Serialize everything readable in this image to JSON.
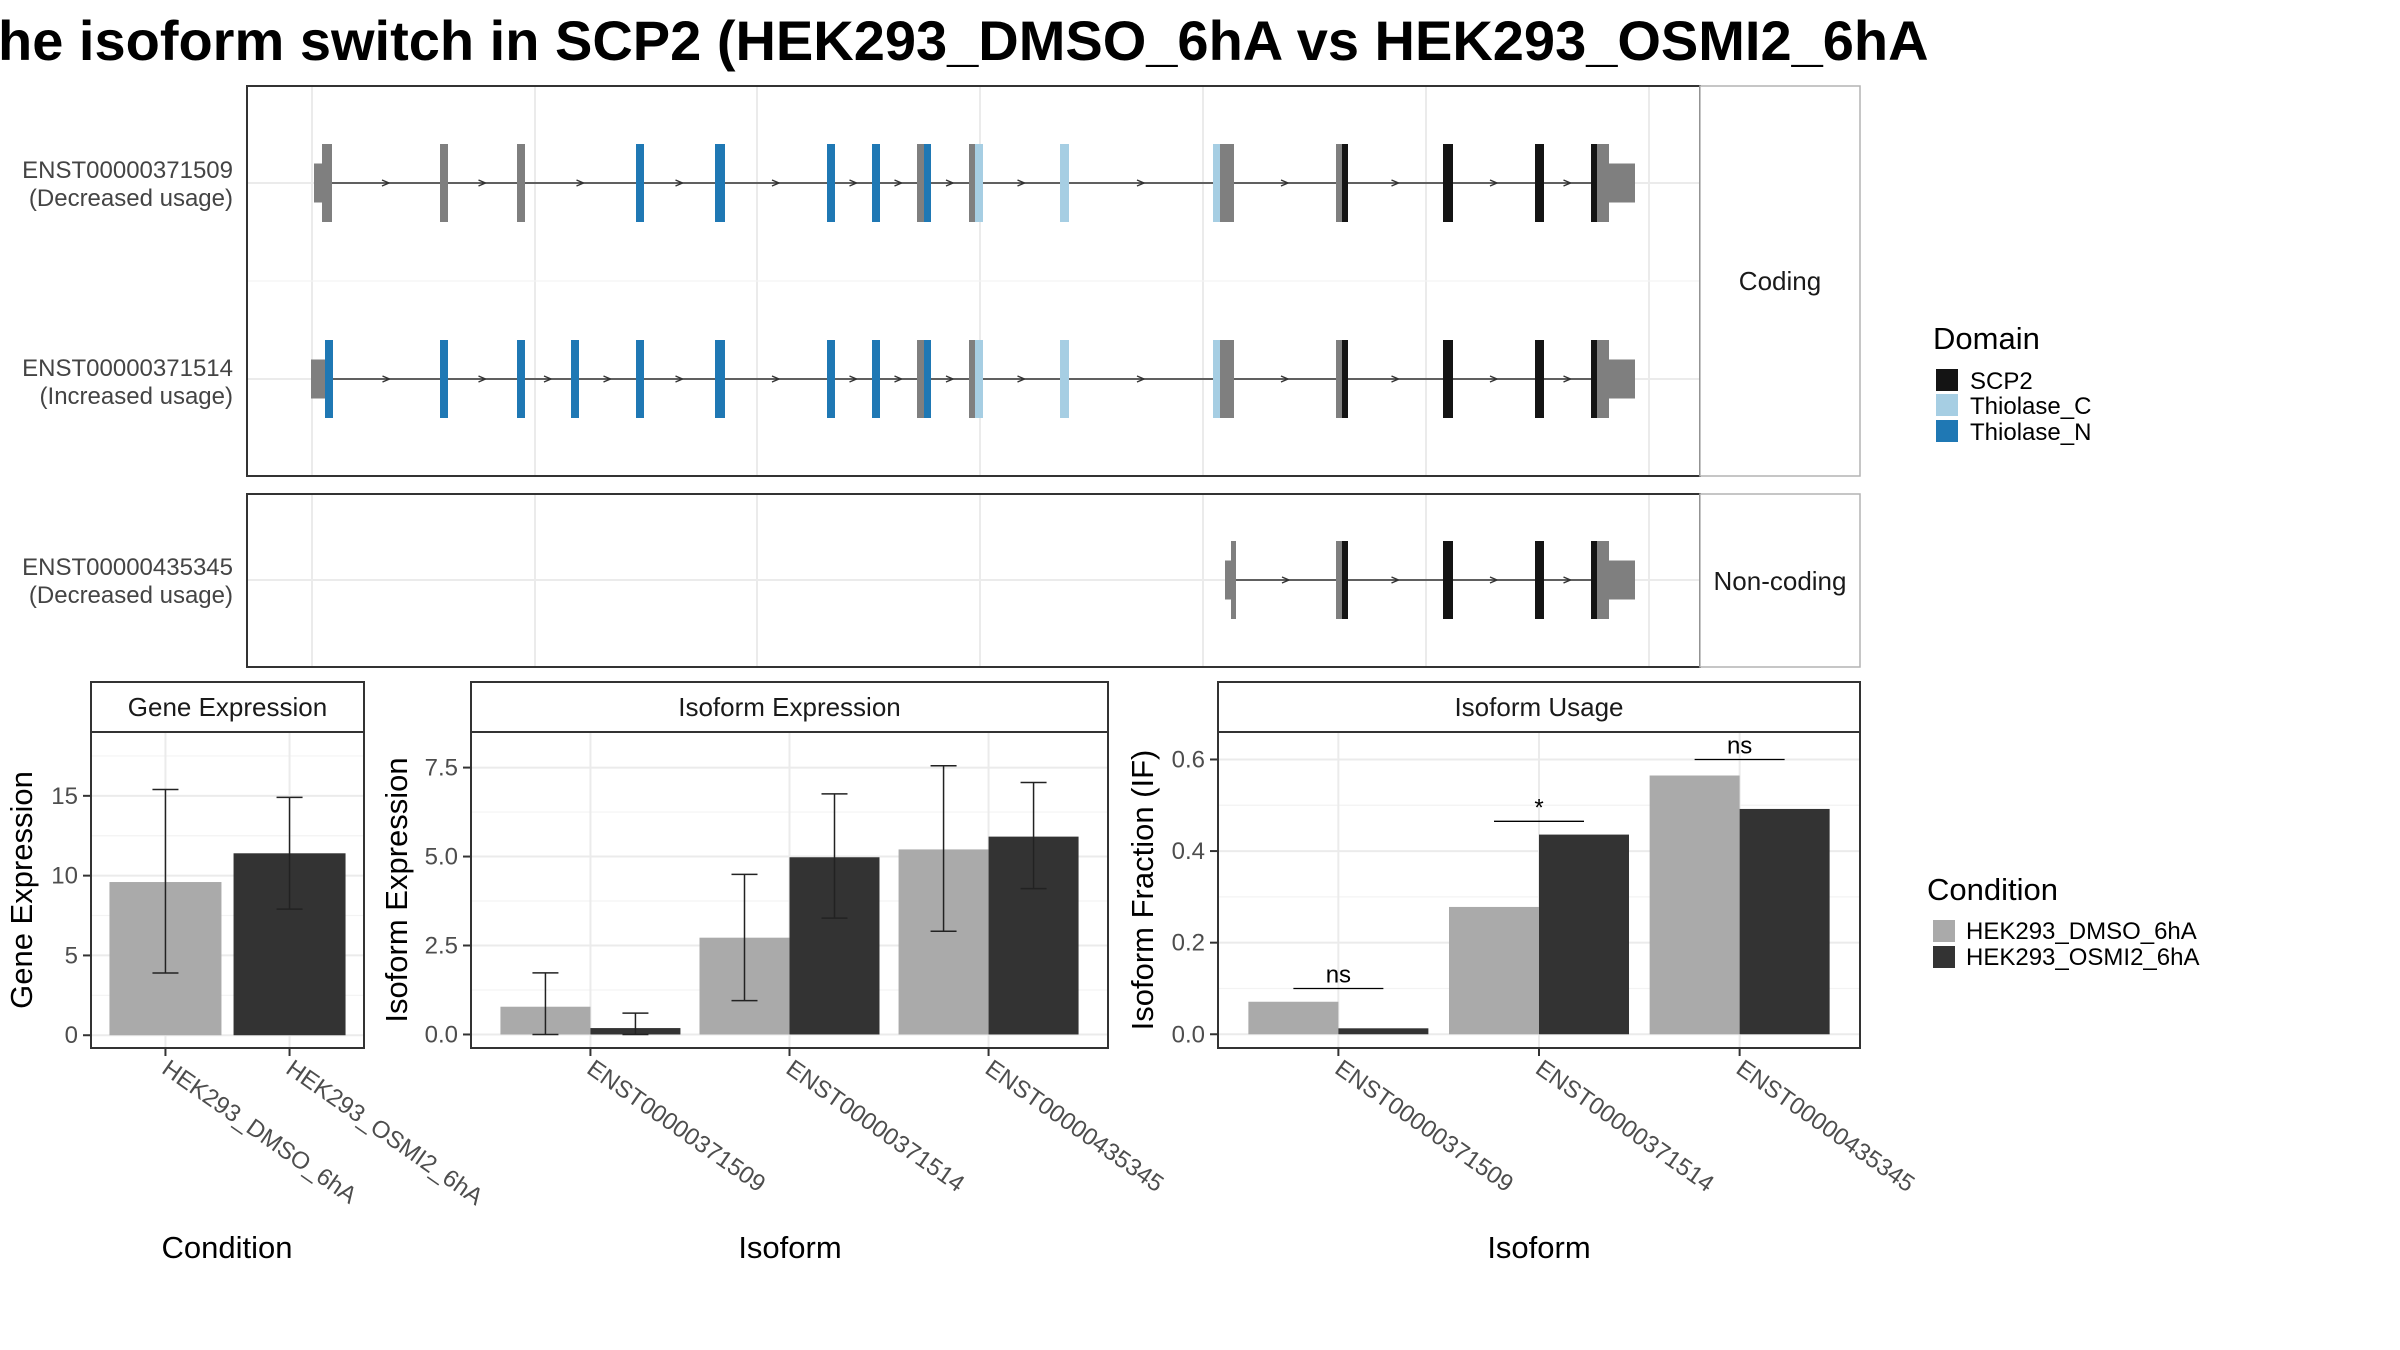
{
  "title": "he isoform switch in SCP2 (HEK293_DMSO_6hA vs HEK293_OSMI2_6hA",
  "colors": {
    "scp2": "#141414",
    "thiolase_c": "#a6cee3",
    "thiolase_n": "#1f78b4",
    "no_domain": "#7f7f7f",
    "dmso": "#aaaaaa",
    "osmi2": "#333333"
  },
  "structure": {
    "panels": [
      {
        "strip": "Coding",
        "transcripts": [
          "t1",
          "t2"
        ]
      },
      {
        "strip": "Non-coding",
        "transcripts": [
          "t3"
        ]
      }
    ],
    "transcripts": {
      "t1": {
        "id": "ENST00000371509",
        "usage": "(Decreased usage)"
      },
      "t2": {
        "id": "ENST00000371514",
        "usage": "(Increased usage)"
      },
      "t3": {
        "id": "ENST00000435345",
        "usage": "(Decreased usage)"
      }
    }
  },
  "domain_legend": {
    "title": "Domain",
    "items": [
      {
        "label": "SCP2",
        "color": "#141414"
      },
      {
        "label": "Thiolase_C",
        "color": "#a6cee3"
      },
      {
        "label": "Thiolase_N",
        "color": "#1f78b4"
      }
    ]
  },
  "condition_legend": {
    "title": "Condition",
    "items": [
      {
        "label": "HEK293_DMSO_6hA",
        "color": "#aaaaaa"
      },
      {
        "label": "HEK293_OSMI2_6hA",
        "color": "#333333"
      }
    ]
  },
  "chart_data": [
    {
      "type": "bar",
      "title": "Gene Expression",
      "categories": [
        "HEK293_DMSO_6hA",
        "HEK293_OSMI2_6hA"
      ],
      "series": [
        {
          "values": [
            9.6,
            11.4
          ],
          "err_low": [
            3.9,
            7.9
          ],
          "err_high": [
            15.4,
            14.9
          ]
        }
      ],
      "xlabel": "Condition",
      "ylabel": "Gene Expression",
      "ylim": [
        -0.8,
        19.0
      ],
      "yticks": [
        0,
        5,
        10,
        15
      ],
      "ytick_labels": [
        "0",
        "5",
        "10",
        "15"
      ]
    },
    {
      "type": "bar",
      "title": "Isoform Expression",
      "categories": [
        "ENST00000371509",
        "ENST00000371514",
        "ENST00000435345"
      ],
      "series": [
        {
          "name": "HEK293_DMSO_6hA",
          "values": [
            0.78,
            2.72,
            5.2
          ],
          "err_low": [
            0.0,
            0.95,
            2.9
          ],
          "err_high": [
            1.73,
            4.5,
            7.55
          ]
        },
        {
          "name": "HEK293_OSMI2_6hA",
          "values": [
            0.18,
            4.98,
            5.56
          ],
          "err_low": [
            0.0,
            3.27,
            4.1
          ],
          "err_high": [
            0.6,
            6.76,
            7.08
          ]
        }
      ],
      "xlabel": "Isoform",
      "ylabel": "Isoform Expression",
      "ylim": [
        -0.38,
        8.5
      ],
      "yticks": [
        0,
        2.5,
        5.0,
        7.5
      ],
      "ytick_labels": [
        "0.0",
        "2.5",
        "5.0",
        "7.5"
      ]
    },
    {
      "type": "bar",
      "title": "Isoform Usage",
      "categories": [
        "ENST00000371509",
        "ENST00000371514",
        "ENST00000435345"
      ],
      "series": [
        {
          "name": "HEK293_DMSO_6hA",
          "values": [
            0.071,
            0.278,
            0.565
          ]
        },
        {
          "name": "HEK293_OSMI2_6hA",
          "values": [
            0.013,
            0.436,
            0.492
          ]
        }
      ],
      "significance": [
        {
          "label": "ns",
          "value": 0.1
        },
        {
          "label": "*",
          "value": 0.465
        },
        {
          "label": "ns",
          "value": 0.6
        }
      ],
      "xlabel": "Isoform",
      "ylabel": "Isoform Fraction (IF)",
      "ylim": [
        -0.03,
        0.66
      ],
      "yticks": [
        0.0,
        0.2,
        0.4,
        0.6
      ],
      "ytick_labels": [
        "0.0",
        "0.2",
        "0.4",
        "0.6"
      ]
    }
  ]
}
